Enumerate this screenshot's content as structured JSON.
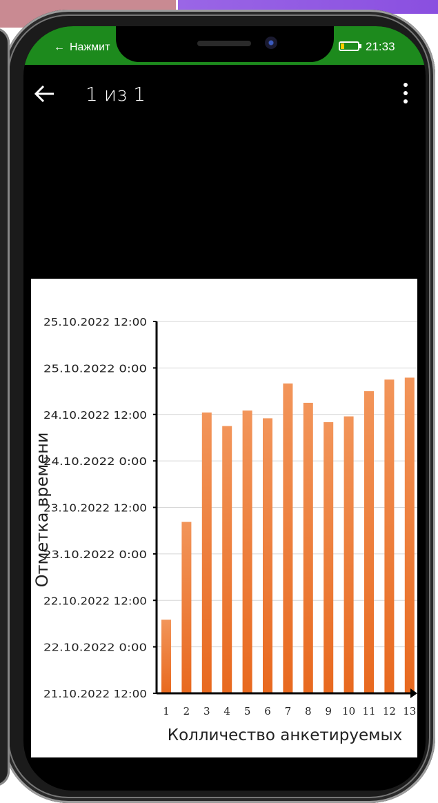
{
  "status_bar": {
    "back_glyph": "←",
    "notice_text": "Нажмит",
    "battery_percent_partial": "6",
    "time": "21:33"
  },
  "app_bar": {
    "page_counter": "1 из 1"
  },
  "colors": {
    "status_bar": "#1d8a1d",
    "bar_top": "#f2955a",
    "bar_bottom": "#e8691f"
  },
  "chart_data": {
    "type": "bar",
    "title": "",
    "xlabel": "Колличество анкетируемых",
    "ylabel": "Отметка времени",
    "categories": [
      "1",
      "2",
      "3",
      "4",
      "5",
      "6",
      "7",
      "8",
      "9",
      "10",
      "11",
      "12",
      "13"
    ],
    "values": [
      "22.10.2022 07:00",
      "23.10.2022 08:15",
      "24.10.2022 12:30",
      "24.10.2022 09:00",
      "24.10.2022 13:00",
      "24.10.2022 11:00",
      "24.10.2022 20:00",
      "24.10.2022 15:00",
      "24.10.2022 10:00",
      "24.10.2022 11:30",
      "24.10.2022 18:00",
      "24.10.2022 21:00",
      "24.10.2022 21:30"
    ],
    "y_ticks": [
      "21.10.2022 12:00",
      "22.10.2022 0:00",
      "22.10.2022 12:00",
      "23.10.2022 0:00",
      "23.10.2022 12:00",
      "24.10.2022 0:00",
      "24.10.2022 12:00",
      "25.10.2022 0:00",
      "25.10.2022 12:00"
    ],
    "ylim": [
      "21.10.2022 12:00",
      "25.10.2022 12:00"
    ],
    "grid": true,
    "legend": "none"
  }
}
